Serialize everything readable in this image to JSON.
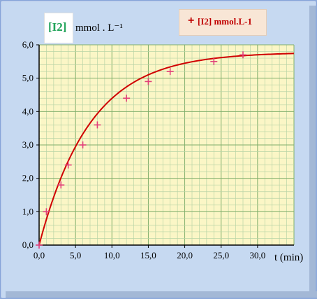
{
  "chart_data": {
    "type": "scatter",
    "title": "",
    "ylabel_species": "[I2]",
    "ylabel_unit": "mmol . L⁻¹",
    "xlabel": "t (min)",
    "xlim": [
      0,
      35
    ],
    "ylim": [
      0,
      6
    ],
    "x_tick_labels": [
      "0,0",
      "5,0",
      "10,0",
      "15,0",
      "20,0",
      "25,0",
      "30,0"
    ],
    "y_tick_labels": [
      "0,0",
      "1,0",
      "2,0",
      "3,0",
      "4,0",
      "5,0",
      "6,0"
    ],
    "grid": true,
    "legend_position": "top-right",
    "series": [
      {
        "name": "[I2] mmol.L-1",
        "marker": "+",
        "color": "#c00000",
        "x": [
          0,
          1,
          3,
          4,
          6,
          8,
          12,
          15,
          18,
          24,
          28
        ],
        "y": [
          0,
          1.0,
          1.8,
          2.4,
          3.0,
          3.6,
          4.4,
          4.9,
          5.2,
          5.5,
          5.7
        ]
      }
    ],
    "fit_curve": {
      "color": "#d00000",
      "model": "y = a(1 - exp(-t/tau))",
      "a": 5.78,
      "tau": 7.0
    },
    "colors": {
      "plot_background": "#fbf6c6",
      "grid": "#b9d4a6",
      "frame_background": "#c6d9f1"
    }
  }
}
